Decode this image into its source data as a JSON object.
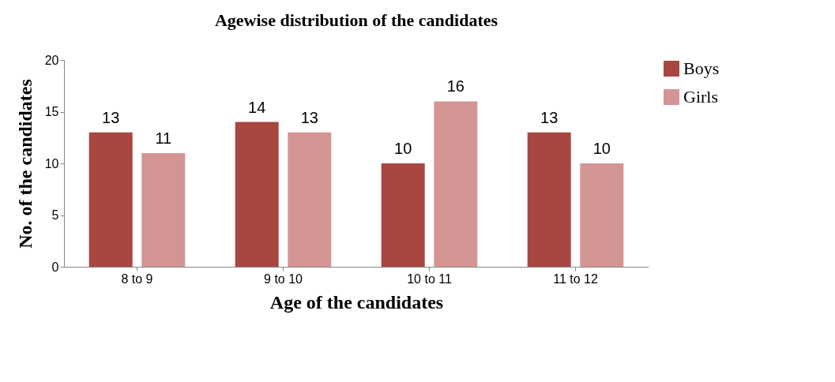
{
  "chart_data": {
    "type": "bar",
    "title": "Agewise distribution of the candidates",
    "xlabel": "Age of the candidates",
    "ylabel": "No. of the candidates",
    "categories": [
      "8 to 9",
      "9 to 10",
      "10 to 11",
      "11 to 12"
    ],
    "series": [
      {
        "name": "Boys",
        "color": "#a84642",
        "values": [
          13,
          14,
          10,
          13
        ]
      },
      {
        "name": "Girls",
        "color": "#d39593",
        "values": [
          11,
          13,
          16,
          10
        ]
      }
    ],
    "ylim": [
      0,
      20
    ],
    "yticks": [
      0,
      5,
      10,
      15,
      20
    ],
    "grid": false,
    "legend": "right",
    "data_labels": true
  }
}
